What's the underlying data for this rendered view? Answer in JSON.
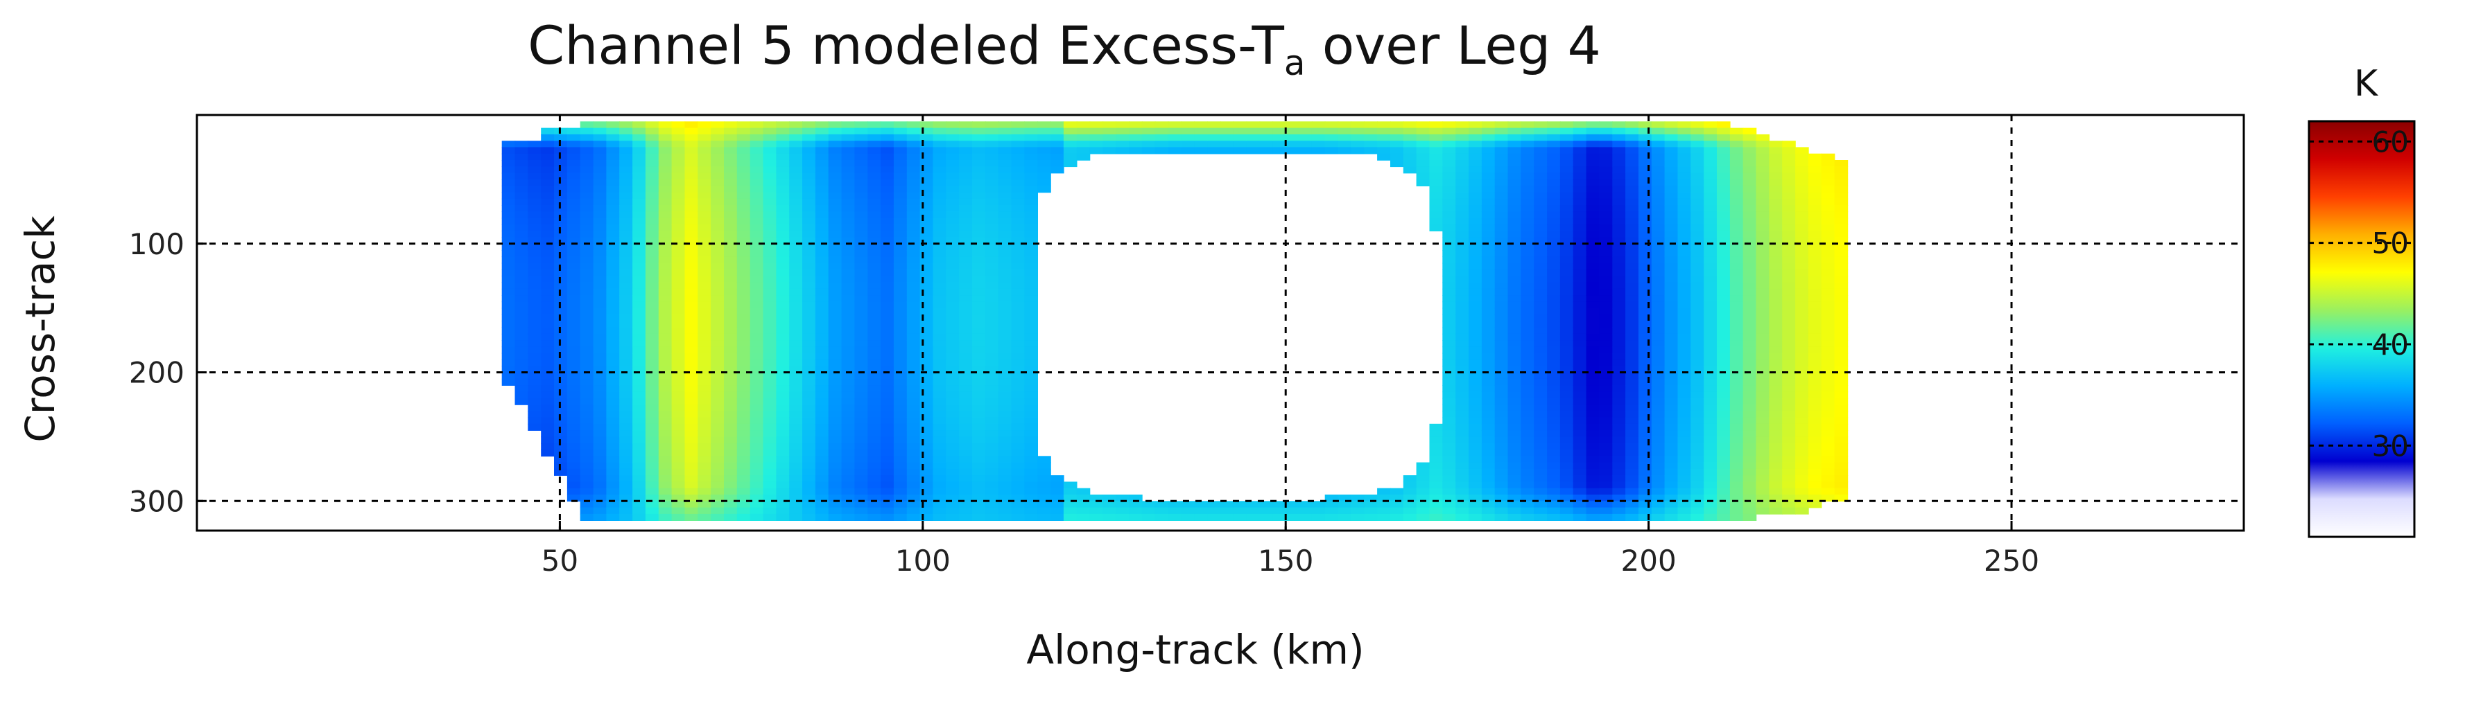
{
  "chart_data": {
    "type": "heatmap",
    "title": "Channel 5 modeled Excess-T",
    "title_subscript": "a",
    "title_suffix": " over Leg 4",
    "xlabel": "Along-track (km)",
    "ylabel": "Cross-track",
    "xlim": [
      0,
      282
    ],
    "ylim": [
      323,
      0
    ],
    "xticks": [
      50,
      100,
      150,
      200,
      250
    ],
    "yticks": [
      100,
      200,
      300
    ],
    "grid": true,
    "colorbar": {
      "label": "K",
      "min": 21,
      "max": 62,
      "ticks": [
        30,
        40,
        50,
        60
      ],
      "colormap": [
        "#ffffff",
        "#dcdcff",
        "#0000d0",
        "#0060ff",
        "#00b0ff",
        "#20f0e0",
        "#9af060",
        "#ffff00",
        "#ffb000",
        "#ff4000",
        "#d00000",
        "#8b0000"
      ]
    },
    "swath": {
      "x_start": 42,
      "x_end": 227,
      "y_start": 5,
      "y_end": 315
    },
    "hole": {
      "x_start": 115,
      "x_end": 171,
      "y_start": 28,
      "y_end": 298
    },
    "along_track_profile": {
      "x": [
        42,
        48,
        55,
        60,
        64,
        68,
        75,
        82,
        88,
        95,
        102,
        108,
        115,
        125,
        135,
        145,
        155,
        165,
        171,
        176,
        182,
        188,
        193,
        197,
        202,
        207,
        212,
        217,
        222,
        227
      ],
      "excess_ta": [
        33,
        32,
        34,
        38,
        44,
        47,
        43,
        39,
        35,
        33,
        37,
        38,
        37,
        36,
        35,
        35,
        35,
        36,
        38,
        36,
        33,
        31,
        28,
        30,
        34,
        37,
        41,
        44,
        46,
        47
      ]
    },
    "edge_values": {
      "near_top_edge": 52,
      "near_bottom_edge": 40
    }
  }
}
